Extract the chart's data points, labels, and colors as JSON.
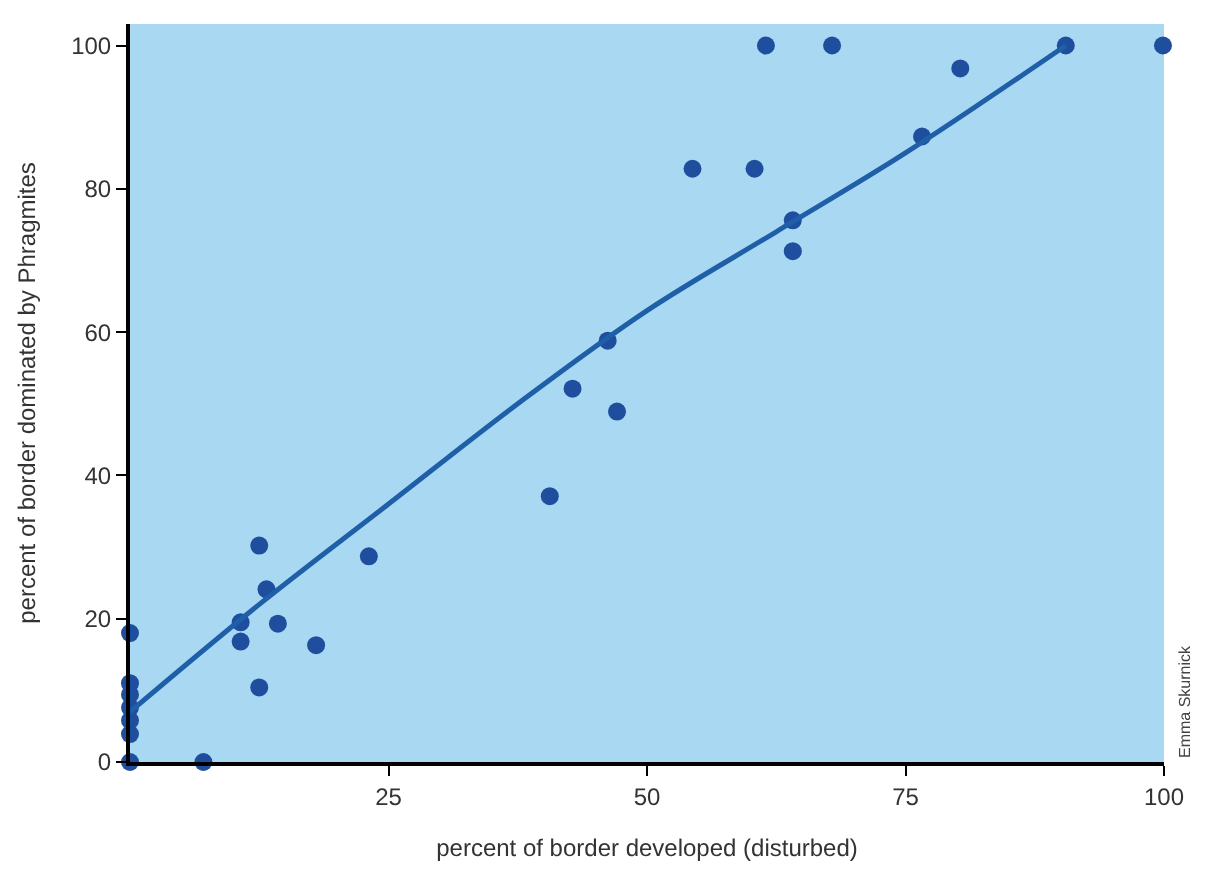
{
  "chart_data": {
    "type": "scatter",
    "xlabel": "percent of border developed (disturbed)",
    "ylabel": "percent of border dominated by Phragmites",
    "xlim": [
      0,
      100
    ],
    "ylim": [
      0,
      103
    ],
    "xticks": [
      25,
      50,
      75,
      100
    ],
    "yticks": [
      0,
      20,
      40,
      60,
      80,
      100
    ],
    "grid": false,
    "marker": "circle",
    "annotations": [
      "Emma Skurnick"
    ],
    "series": [
      {
        "color": "#1f4e9e",
        "x": [
          0,
          0,
          0,
          0,
          0,
          0,
          0,
          7.1,
          10.7,
          10.7,
          12.5,
          12.5,
          13.2,
          14.3,
          18,
          23.1,
          40.6,
          42.8,
          46.2,
          47.1,
          54.4,
          60.4,
          61.5,
          67.9,
          64.1,
          64.1,
          76.6,
          80.3,
          90.5,
          99.9
        ],
        "values": [
          18,
          11,
          9.4,
          7.6,
          5.8,
          3.9,
          0,
          0,
          19.5,
          16.8,
          30.2,
          10.4,
          24.1,
          19.3,
          16.3,
          28.7,
          37.1,
          52.1,
          58.8,
          48.9,
          82.8,
          82.8,
          100,
          100,
          75.6,
          71.3,
          87.3,
          96.8,
          100,
          100
        ]
      },
      {
        "type": "line",
        "color": "#1f5fa8",
        "line_style": "solid",
        "marker": "none",
        "x": [
          0,
          12.5,
          25,
          37.5,
          50,
          62.5,
          75,
          90.5
        ],
        "values": [
          7,
          22,
          36,
          50,
          63,
          74,
          85,
          100
        ]
      }
    ]
  }
}
